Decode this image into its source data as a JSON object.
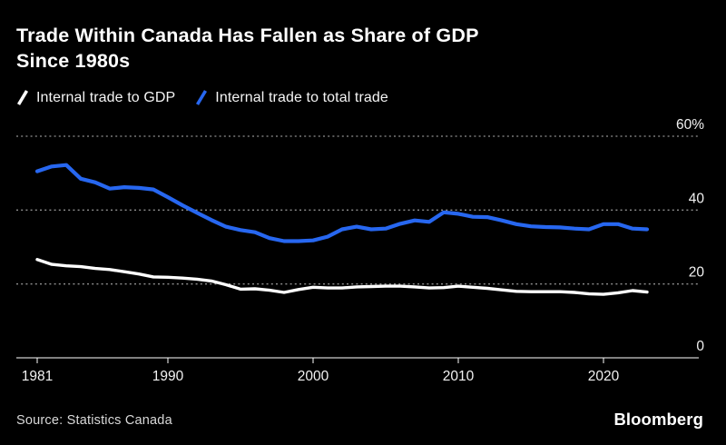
{
  "title": {
    "line1": "Trade Within Canada Has Fallen as Share of GDP",
    "line2": "Since 1980s",
    "full": "Trade Within Canada Has Fallen as Share of GDP Since 1980s"
  },
  "legend": [
    {
      "label": "Internal trade to GDP",
      "color": "#ffffff"
    },
    {
      "label": "Internal trade to total trade",
      "color": "#2767f0"
    }
  ],
  "source": "Source: Statistics Canada",
  "brand": "Bloomberg",
  "colors": {
    "background": "#000000",
    "title_text": "#ffffff",
    "axis_text": "#f2f2f2",
    "gridline": "#8f8f8f",
    "baseline": "#ffffff",
    "series_gdp": "#ffffff",
    "series_total_trade": "#2767f0"
  },
  "chart_data": {
    "type": "line",
    "title": "Trade Within Canada Has Fallen as Share of GDP Since 1980s",
    "xlabel": "",
    "ylabel": "",
    "ylim": [
      0,
      60
    ],
    "grid": "horizontal-dotted",
    "legend_position": "top",
    "y_ticks": [
      {
        "value": 60,
        "label": "60%"
      },
      {
        "value": 40,
        "label": "40"
      },
      {
        "value": 20,
        "label": "20"
      },
      {
        "value": 0,
        "label": "0"
      }
    ],
    "x_ticks": [
      {
        "value": 1981,
        "label": "1981"
      },
      {
        "value": 1990,
        "label": "1990"
      },
      {
        "value": 2000,
        "label": "2000"
      },
      {
        "value": 2010,
        "label": "2010"
      },
      {
        "value": 2020,
        "label": "2020"
      }
    ],
    "x": [
      1981,
      1982,
      1983,
      1984,
      1985,
      1986,
      1987,
      1988,
      1989,
      1990,
      1991,
      1992,
      1993,
      1994,
      1995,
      1996,
      1997,
      1998,
      1999,
      2000,
      2001,
      2002,
      2003,
      2004,
      2005,
      2006,
      2007,
      2008,
      2009,
      2010,
      2011,
      2012,
      2013,
      2014,
      2015,
      2016,
      2017,
      2018,
      2019,
      2020,
      2021,
      2022,
      2023
    ],
    "series": [
      {
        "name": "Internal trade to GDP",
        "color": "#ffffff",
        "stroke_width": 3.4,
        "values": [
          26.6,
          25.3,
          24.9,
          24.7,
          24.2,
          23.9,
          23.3,
          22.7,
          21.9,
          21.8,
          21.6,
          21.3,
          20.8,
          19.8,
          18.6,
          18.7,
          18.3,
          17.7,
          18.5,
          19.1,
          18.9,
          18.9,
          19.2,
          19.3,
          19.4,
          19.4,
          19.2,
          18.9,
          19.0,
          19.4,
          19.1,
          18.8,
          18.4,
          18.0,
          17.9,
          17.9,
          17.9,
          17.7,
          17.3,
          17.2,
          17.6,
          18.2,
          17.8
        ]
      },
      {
        "name": "Internal trade to total trade",
        "color": "#2767f0",
        "stroke_width": 4.2,
        "values": [
          50.5,
          51.8,
          52.2,
          48.5,
          47.5,
          45.8,
          46.2,
          46.0,
          45.6,
          43.5,
          41.3,
          39.3,
          37.3,
          35.5,
          34.6,
          34.0,
          32.4,
          31.6,
          31.6,
          31.8,
          32.8,
          34.8,
          35.5,
          34.8,
          35.0,
          36.3,
          37.2,
          36.8,
          39.4,
          39.0,
          38.2,
          38.1,
          37.2,
          36.2,
          35.6,
          35.4,
          35.3,
          35.0,
          34.8,
          36.2,
          36.2,
          35.0,
          34.8
        ]
      }
    ]
  }
}
